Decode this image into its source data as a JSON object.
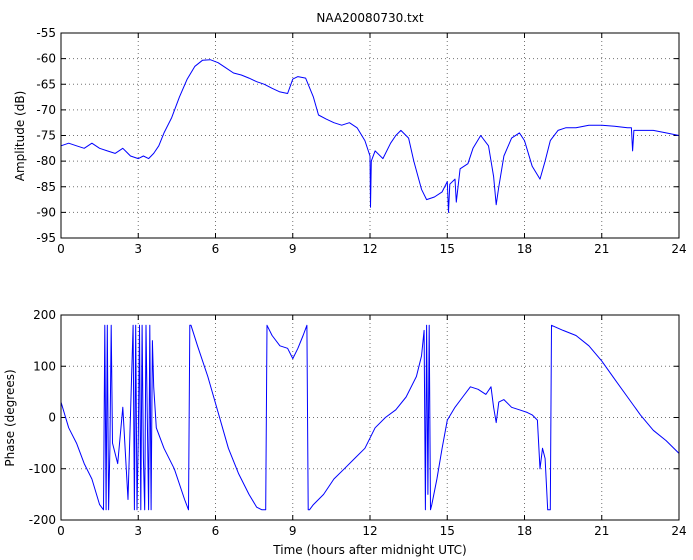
{
  "chart_data": [
    {
      "type": "line",
      "title": "NAA20080730.txt",
      "xlabel": "",
      "ylabel": "Amplitude (dB)",
      "xlim": [
        0,
        24
      ],
      "ylim": [
        -95,
        -55
      ],
      "xticks": [
        0,
        3,
        6,
        9,
        12,
        15,
        18,
        21,
        24
      ],
      "yticks": [
        -95,
        -90,
        -85,
        -80,
        -75,
        -70,
        -65,
        -60,
        -55
      ],
      "grid": true,
      "series": [
        {
          "color": "#0000ff",
          "x": [
            0,
            0.3,
            0.6,
            0.9,
            1.2,
            1.5,
            1.8,
            2.1,
            2.4,
            2.7,
            3.0,
            3.2,
            3.4,
            3.6,
            3.8,
            4.0,
            4.3,
            4.6,
            4.9,
            5.2,
            5.5,
            5.8,
            6.1,
            6.4,
            6.7,
            7.0,
            7.3,
            7.6,
            7.9,
            8.2,
            8.5,
            8.8,
            9.0,
            9.2,
            9.5,
            9.8,
            10.0,
            10.3,
            10.6,
            10.9,
            11.2,
            11.5,
            11.8,
            12.0,
            12.02,
            12.05,
            12.2,
            12.5,
            12.8,
            13.0,
            13.2,
            13.5,
            13.7,
            14.0,
            14.2,
            14.5,
            14.8,
            15.0,
            15.05,
            15.1,
            15.3,
            15.35,
            15.5,
            15.8,
            16.0,
            16.3,
            16.6,
            16.8,
            16.9,
            17.0,
            17.2,
            17.5,
            17.8,
            18.0,
            18.3,
            18.6,
            18.8,
            19.0,
            19.3,
            19.6,
            20.0,
            20.5,
            21.0,
            21.5,
            22.0,
            22.15,
            22.2,
            22.25,
            22.5,
            23.0,
            23.5,
            24.0
          ],
          "y": [
            -77,
            -76.5,
            -77,
            -77.5,
            -76.5,
            -77.5,
            -78,
            -78.5,
            -77.5,
            -79,
            -79.5,
            -79,
            -79.5,
            -78.5,
            -77,
            -74.5,
            -71.5,
            -67.5,
            -64,
            -61.5,
            -60.3,
            -60.2,
            -60.8,
            -61.8,
            -62.8,
            -63.2,
            -63.8,
            -64.5,
            -65,
            -65.8,
            -66.5,
            -66.8,
            -64,
            -63.5,
            -63.8,
            -67.5,
            -71,
            -71.8,
            -72.5,
            -73,
            -72.5,
            -73.5,
            -76,
            -79,
            -89,
            -80,
            -78,
            -79.5,
            -76.5,
            -75,
            -74,
            -75.5,
            -80,
            -85.5,
            -87.5,
            -87,
            -86,
            -84,
            -90,
            -84.5,
            -83.5,
            -88,
            -81.5,
            -80.5,
            -77.5,
            -75,
            -77,
            -83,
            -88.5,
            -85,
            -79,
            -75.5,
            -74.5,
            -76,
            -81,
            -83.5,
            -80,
            -76,
            -74,
            -73.5,
            -73.5,
            -73,
            -73,
            -73.2,
            -73.5,
            -73.5,
            -78,
            -74,
            -74,
            -74,
            -74.5,
            -75
          ]
        }
      ]
    },
    {
      "type": "line",
      "title": "",
      "xlabel": "Time (hours after midnight UTC)",
      "ylabel": "Phase (degrees)",
      "xlim": [
        0,
        24
      ],
      "ylim": [
        -200,
        200
      ],
      "xticks": [
        0,
        3,
        6,
        9,
        12,
        15,
        18,
        21,
        24
      ],
      "yticks": [
        -200,
        -100,
        0,
        100,
        200
      ],
      "grid": true,
      "series": [
        {
          "color": "#0000ff",
          "x": [
            0,
            0.3,
            0.6,
            0.9,
            1.2,
            1.5,
            1.65,
            1.7,
            1.75,
            1.8,
            1.85,
            1.9,
            1.95,
            2.0,
            2.2,
            2.4,
            2.6,
            2.8,
            2.85,
            2.9,
            2.95,
            3.0,
            3.05,
            3.1,
            3.15,
            3.2,
            3.25,
            3.3,
            3.4,
            3.45,
            3.5,
            3.55,
            3.6,
            3.7,
            4.0,
            4.4,
            4.8,
            4.95,
            5.0,
            5.05,
            5.3,
            5.7,
            6.1,
            6.5,
            6.9,
            7.3,
            7.6,
            7.8,
            7.95,
            8.0,
            8.2,
            8.5,
            8.8,
            9.0,
            9.2,
            9.4,
            9.55,
            9.6,
            9.65,
            9.8,
            10.2,
            10.6,
            11.0,
            11.4,
            11.8,
            12.2,
            12.6,
            13.0,
            13.4,
            13.8,
            14.0,
            14.1,
            14.15,
            14.2,
            14.25,
            14.3,
            14.35,
            14.4,
            14.6,
            14.8,
            15.0,
            15.3,
            15.6,
            15.9,
            16.2,
            16.5,
            16.7,
            16.8,
            16.9,
            17.0,
            17.2,
            17.5,
            17.8,
            18.1,
            18.3,
            18.5,
            18.6,
            18.7,
            18.8,
            18.9,
            18.95,
            19.0,
            19.05,
            19.5,
            20.0,
            20.5,
            21.0,
            21.5,
            22.0,
            22.5,
            23.0,
            23.5,
            24.0
          ],
          "y": [
            30,
            -20,
            -50,
            -90,
            -120,
            -170,
            -180,
            180,
            -180,
            180,
            -180,
            -60,
            180,
            -50,
            -90,
            20,
            -160,
            180,
            -180,
            180,
            -180,
            -40,
            180,
            -180,
            180,
            -80,
            -180,
            180,
            -180,
            180,
            -180,
            150,
            60,
            -20,
            -60,
            -100,
            -160,
            -180,
            180,
            180,
            140,
            80,
            10,
            -60,
            -110,
            -150,
            -175,
            -180,
            -180,
            180,
            160,
            140,
            135,
            115,
            135,
            160,
            180,
            -180,
            -180,
            -170,
            -150,
            -120,
            -100,
            -80,
            -60,
            -20,
            0,
            15,
            40,
            80,
            120,
            170,
            -180,
            180,
            -150,
            180,
            -180,
            -170,
            -120,
            -60,
            -5,
            20,
            40,
            60,
            55,
            45,
            60,
            20,
            -10,
            30,
            35,
            20,
            15,
            10,
            5,
            -5,
            -100,
            -60,
            -80,
            -180,
            -180,
            -180,
            180,
            170,
            160,
            140,
            110,
            75,
            40,
            5,
            -25,
            -45,
            -70
          ]
        }
      ]
    }
  ]
}
